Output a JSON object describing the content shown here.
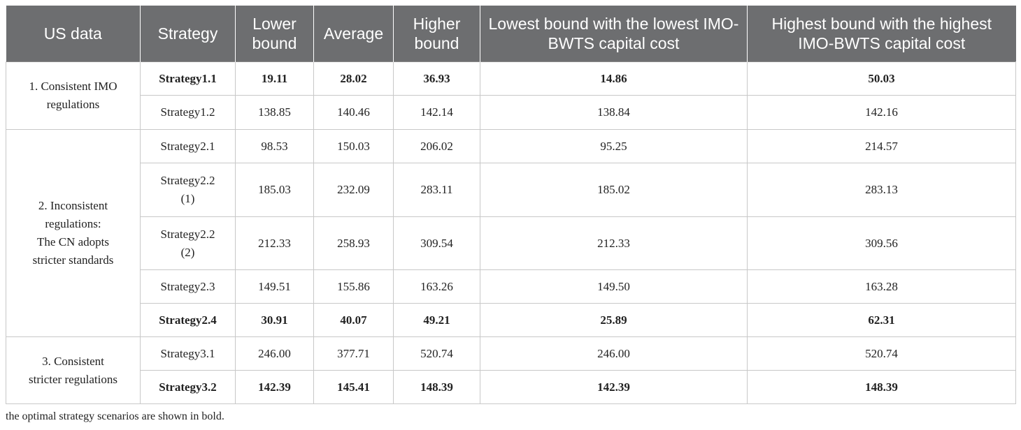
{
  "table": {
    "header": [
      "US data",
      "Strategy",
      "Lower bound",
      "Average",
      "Higher bound",
      "Lowest bound with the lowest IMO-BWTS capital cost",
      "Highest bound with the highest IMO-BWTS capital cost"
    ],
    "groups": [
      {
        "label": [
          "1. Consistent IMO",
          "regulations"
        ],
        "rows": [
          {
            "bold": true,
            "cells": [
              "Strategy1.1",
              "19.11",
              "28.02",
              "36.93",
              "14.86",
              "50.03"
            ]
          },
          {
            "bold": false,
            "cells": [
              "Strategy1.2",
              "138.85",
              "140.46",
              "142.14",
              "138.84",
              "142.16"
            ]
          }
        ]
      },
      {
        "label": [
          "2. Inconsistent",
          "regulations:",
          "The CN adopts",
          "stricter standards"
        ],
        "rows": [
          {
            "bold": false,
            "cells": [
              "Strategy2.1",
              "98.53",
              "150.03",
              "206.02",
              "95.25",
              "214.57"
            ]
          },
          {
            "bold": false,
            "cells": [
              "Strategy2.2 (1)",
              "185.03",
              "232.09",
              "283.11",
              "185.02",
              "283.13"
            ]
          },
          {
            "bold": false,
            "cells": [
              "Strategy2.2 (2)",
              "212.33",
              "258.93",
              "309.54",
              "212.33",
              "309.56"
            ]
          },
          {
            "bold": false,
            "cells": [
              "Strategy2.3",
              "149.51",
              "155.86",
              "163.26",
              "149.50",
              "163.28"
            ]
          },
          {
            "bold": true,
            "cells": [
              "Strategy2.4",
              "30.91",
              "40.07",
              "49.21",
              "25.89",
              "62.31"
            ]
          }
        ]
      },
      {
        "label": [
          "3. Consistent",
          "stricter regulations"
        ],
        "rows": [
          {
            "bold": false,
            "cells": [
              "Strategy3.1",
              "246.00",
              "377.71",
              "520.74",
              "246.00",
              "520.74"
            ]
          },
          {
            "bold": true,
            "cells": [
              "Strategy3.2",
              "142.39",
              "145.41",
              "148.39",
              "142.39",
              "148.39"
            ]
          }
        ]
      }
    ],
    "footnote": "the optimal strategy scenarios are shown in bold."
  }
}
